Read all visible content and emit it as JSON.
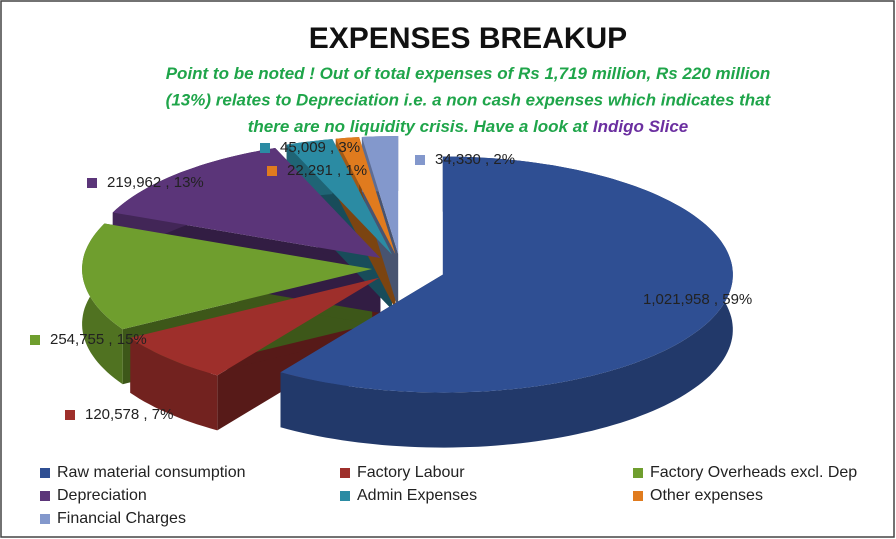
{
  "chart_data": {
    "type": "pie",
    "title": "EXPENSES BREAKUP",
    "subtitle": [
      "Point to be noted ! Out of total expenses of Rs 1,719 million, Rs 220 million",
      "(13%) relates to Depreciation i.e. a non cash expenses which indicates that",
      "there are no liquidity crisis. Have a look at"
    ],
    "subtitle_highlight": "Indigo Slice",
    "subtitle_color": "#1fa54a",
    "highlight_color": "#6b2fa0",
    "categories": [
      "Raw material consumption",
      "Factory Labour",
      "Factory Overheads excl. Dep",
      "Depreciation",
      "Admin Expenses",
      "Other expenses",
      "Financial Charges"
    ],
    "values": [
      1021958,
      120578,
      254755,
      219962,
      45009,
      22291,
      34330
    ],
    "value_labels": [
      "1,021,958 , 59%",
      "120,578 , 7%",
      "254,755 , 15%",
      "219,962 , 13%",
      "45,009 , 3%",
      "22,291 , 1%",
      "34,330 , 2%"
    ],
    "colors": [
      "#2f4f93",
      "#9e2f2b",
      "#6f9e2e",
      "#5b3579",
      "#2b8ba3",
      "#e07b1e",
      "#8398cc"
    ],
    "legend": "bottom"
  }
}
